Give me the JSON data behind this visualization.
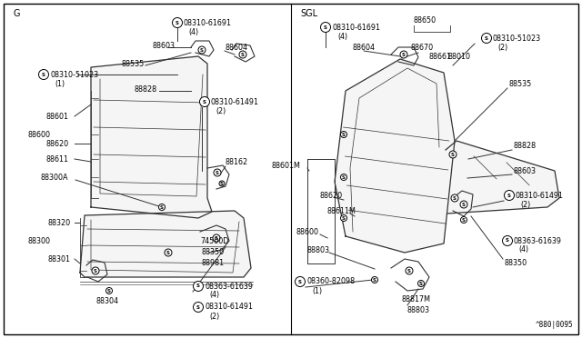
{
  "bg_color": "#ffffff",
  "line_color": "#333333",
  "left_label": "G",
  "right_label": "SGL",
  "watermark": "^880|0095"
}
